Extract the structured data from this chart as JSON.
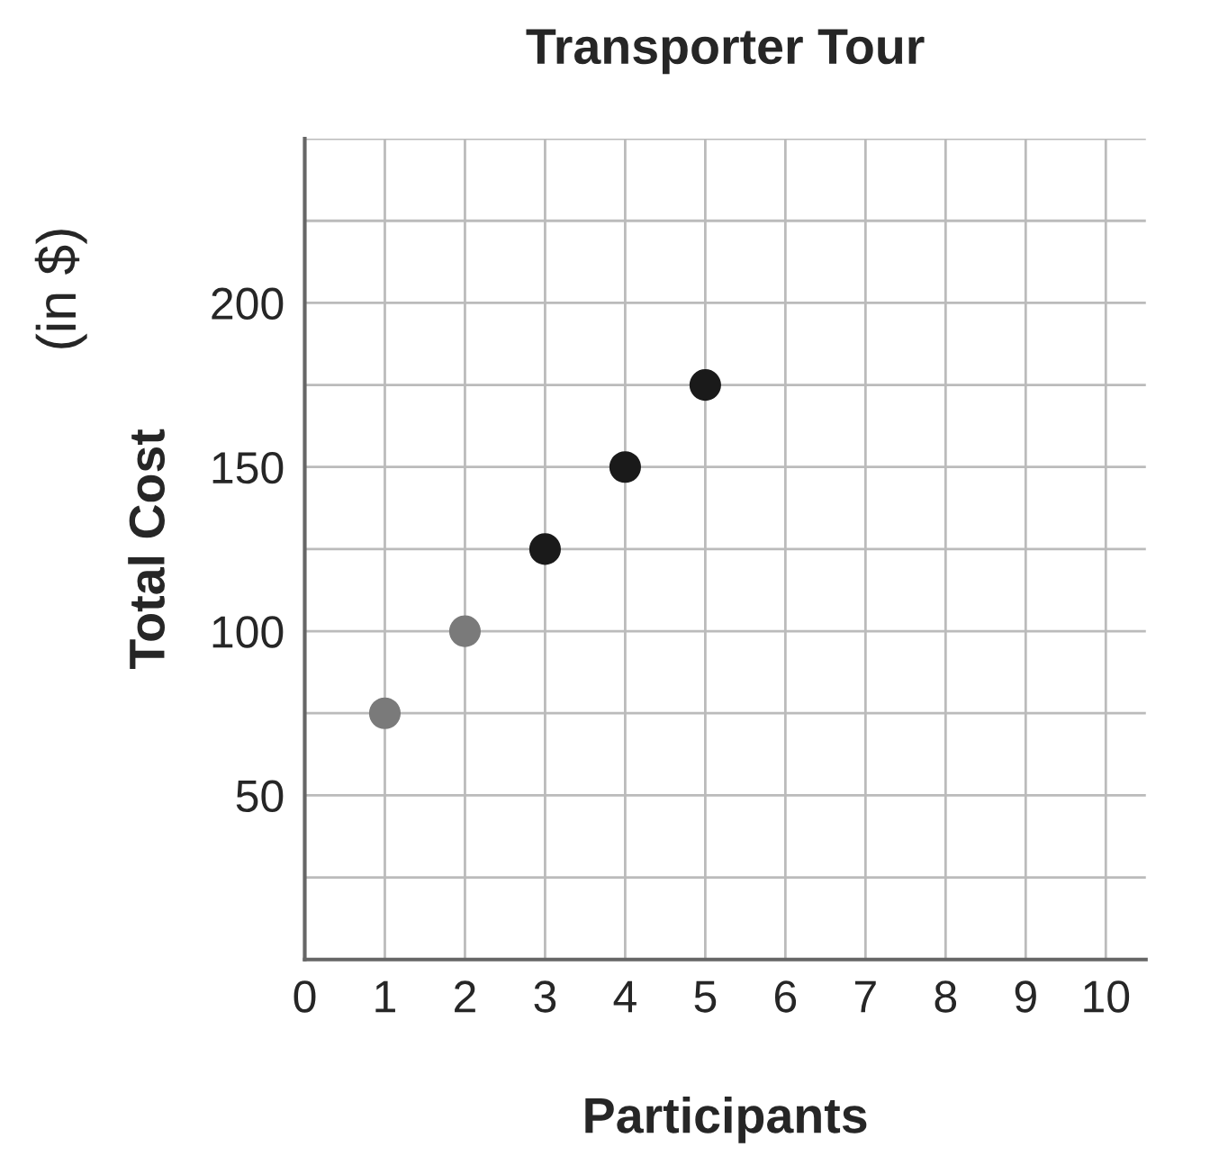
{
  "chart_data": {
    "type": "scatter",
    "title": "Transporter Tour",
    "xlabel": "Participants",
    "ylabel": "Total Cost",
    "annotations": [
      "(in $)"
    ],
    "x": [
      1,
      2,
      3,
      4,
      5
    ],
    "values": [
      75,
      100,
      125,
      150,
      175
    ],
    "colors": [
      "#7a7a7a",
      "#7a7a7a",
      "#1a1a1a",
      "#1a1a1a",
      "#1a1a1a"
    ],
    "xlim": [
      0,
      10.5
    ],
    "xticks": [
      0,
      1,
      2,
      3,
      4,
      5,
      6,
      7,
      8,
      9,
      10
    ],
    "ylim": [
      0,
      250
    ],
    "yticks": [
      {
        "value": 0,
        "label": null
      },
      {
        "value": 25,
        "label": null
      },
      50,
      {
        "value": 75,
        "label": null
      },
      100,
      {
        "value": 125,
        "label": null
      },
      150,
      {
        "value": 175,
        "label": null
      },
      200,
      {
        "value": 225,
        "label": null
      },
      {
        "value": 250,
        "label": null
      }
    ],
    "grid": true,
    "marker": "circle"
  }
}
